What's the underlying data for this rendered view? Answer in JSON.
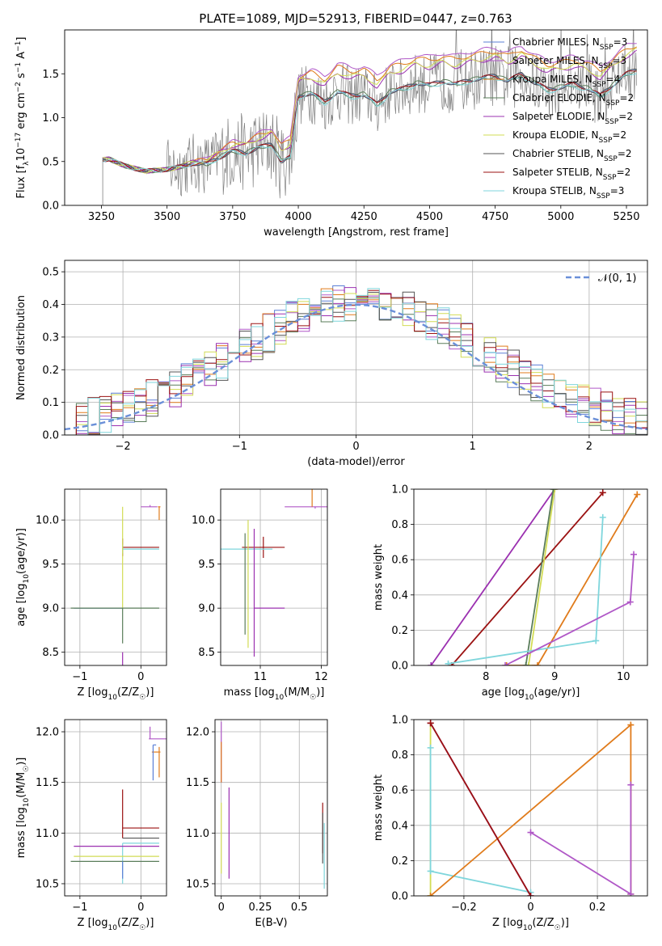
{
  "figure_title": "PLATE=1089, MJD=52913, FIBERID=0447, z=0.763",
  "series_colors": [
    "#5b7fd6",
    "#b058c7",
    "#e07b1b",
    "#5a7d5a",
    "#9b30b0",
    "#d2dc55",
    "#555555",
    "#9b1212",
    "#7fd6dc"
  ],
  "chart_data": [
    {
      "id": "spectrum",
      "type": "line",
      "xlabel": "wavelength [Angstrom, rest frame]",
      "ylabel": "Flux [f_λ 10^-17 erg cm^-2 s^-1 A^-1]",
      "xlim": [
        3110,
        5330
      ],
      "ylim": [
        0,
        2.0
      ],
      "xticks": [
        3250,
        3500,
        3750,
        4000,
        4250,
        4500,
        4750,
        5000,
        5250
      ],
      "yticks": [
        0.0,
        0.5,
        1.0,
        1.5
      ],
      "grid": false,
      "legend_position": "top-right",
      "series": [
        {
          "name": "Chabrier MILES, N_SSP=3"
        },
        {
          "name": "Salpeter MILES, N_SSP=3"
        },
        {
          "name": "Kroupa MILES, N_SSP=4"
        },
        {
          "name": "Chabrier ELODIE, N_SSP=2"
        },
        {
          "name": "Salpeter ELODIE, N_SSP=2"
        },
        {
          "name": "Kroupa ELODIE, N_SSP=2"
        },
        {
          "name": "Chabrier STELIB, N_SSP=2"
        },
        {
          "name": "Salpeter STELIB, N_SSP=2"
        },
        {
          "name": "Kroupa STELIB, N_SSP=3"
        }
      ],
      "model_curve_points": [
        [
          3255,
          0.52
        ],
        [
          3280,
          0.53
        ],
        [
          3300,
          0.5
        ],
        [
          3340,
          0.45
        ],
        [
          3380,
          0.42
        ],
        [
          3420,
          0.39
        ],
        [
          3460,
          0.4
        ],
        [
          3500,
          0.41
        ],
        [
          3550,
          0.44
        ],
        [
          3600,
          0.48
        ],
        [
          3650,
          0.47
        ],
        [
          3700,
          0.55
        ],
        [
          3750,
          0.62
        ],
        [
          3800,
          0.6
        ],
        [
          3850,
          0.66
        ],
        [
          3900,
          0.7
        ],
        [
          3935,
          0.5
        ],
        [
          3970,
          0.55
        ],
        [
          4000,
          1.25
        ],
        [
          4050,
          1.28
        ],
        [
          4100,
          1.18
        ],
        [
          4150,
          1.3
        ],
        [
          4200,
          1.25
        ],
        [
          4250,
          1.27
        ],
        [
          4300,
          1.15
        ],
        [
          4350,
          1.3
        ],
        [
          4400,
          1.33
        ],
        [
          4450,
          1.4
        ],
        [
          4500,
          1.37
        ],
        [
          4550,
          1.42
        ],
        [
          4600,
          1.38
        ],
        [
          4650,
          1.43
        ],
        [
          4700,
          1.45
        ],
        [
          4750,
          1.48
        ],
        [
          4800,
          1.42
        ],
        [
          4850,
          1.5
        ],
        [
          4900,
          1.4
        ],
        [
          4950,
          1.32
        ],
        [
          5000,
          1.35
        ],
        [
          5050,
          1.38
        ],
        [
          5100,
          1.34
        ],
        [
          5150,
          1.25
        ],
        [
          5200,
          1.38
        ],
        [
          5250,
          1.5
        ],
        [
          5290,
          1.55
        ]
      ],
      "model_offsets": [
        0.0,
        0.32,
        0.28,
        0.0,
        0.2,
        0.22,
        0.0,
        0.0,
        -0.02
      ]
    },
    {
      "id": "residual-histogram",
      "type": "bar",
      "xlabel": "(data-model)/error",
      "ylabel": "Normed distribution",
      "xlim": [
        -2.5,
        2.5
      ],
      "ylim": [
        0,
        0.535
      ],
      "xticks": [
        -2,
        -1,
        0,
        1,
        2
      ],
      "yticks": [
        0.0,
        0.1,
        0.2,
        0.3,
        0.4,
        0.5
      ],
      "grid": true,
      "legend_position": "top-right",
      "reference_curve": {
        "name": "𝒩(0, 1)",
        "mean": 0,
        "sigma": 1
      },
      "bin_width": 0.1
    },
    {
      "id": "age-vs-Z",
      "type": "scatter",
      "xlabel": "Z [log10(Z/Z☉)]",
      "ylabel": "age [log10(age/yr)]",
      "xlim": [
        -1.25,
        0.42
      ],
      "ylim": [
        8.35,
        10.35
      ],
      "xticks": [
        -1,
        0
      ],
      "yticks": [
        8.5,
        9.0,
        9.5,
        10.0
      ],
      "grid": true,
      "points": [
        {
          "c": 1,
          "x": 0.15,
          "y": 10.15,
          "xerr": [
            0.15,
            0.12
          ],
          "yerr": [
            0.0,
            0.02
          ]
        },
        {
          "c": 2,
          "x": 0.3,
          "y": 10.15,
          "xerr": [
            0.02,
            0.02
          ],
          "yerr": [
            0.15,
            0.0
          ]
        },
        {
          "c": 7,
          "x": -0.3,
          "y": 9.69,
          "xerr": [
            0.0,
            0.6
          ],
          "yerr": [
            0.1,
            0.1
          ]
        },
        {
          "c": 8,
          "x": -0.3,
          "y": 9.67,
          "xerr": [
            0.0,
            0.6
          ],
          "yerr": [
            0.05,
            0.05
          ]
        },
        {
          "c": 5,
          "x": -0.3,
          "y": 9.0,
          "xerr": [
            0.0,
            0.0
          ],
          "yerr": [
            0.0,
            1.15
          ]
        },
        {
          "c": 0,
          "x": -0.3,
          "y": 9.0,
          "xerr": [
            0.8,
            0.0
          ],
          "yerr": [
            0.0,
            0.0
          ]
        },
        {
          "c": 3,
          "x": -0.3,
          "y": 9.0,
          "xerr": [
            0.85,
            0.6
          ],
          "yerr": [
            0.4,
            0.0
          ]
        },
        {
          "c": 4,
          "x": -0.3,
          "y": 8.5,
          "xerr": [
            0.0,
            0.0
          ],
          "yerr": [
            0.15,
            0.0
          ]
        }
      ]
    },
    {
      "id": "age-vs-mass",
      "type": "scatter",
      "xlabel": "mass [log10(M/M☉)]",
      "ylabel": "",
      "xlim": [
        10.35,
        12.1
      ],
      "ylim": [
        8.35,
        10.35
      ],
      "xticks": [
        11,
        12
      ],
      "yticks": [
        8.5,
        9.0,
        9.5,
        10.0
      ],
      "grid": true,
      "points": [
        {
          "c": 1,
          "x": 11.9,
          "y": 10.15,
          "xerr": [
            0.5,
            0.2
          ],
          "yerr": [
            0.02,
            0.0
          ]
        },
        {
          "c": 2,
          "x": 11.85,
          "y": 10.15,
          "xerr": [
            0.0,
            0.0
          ],
          "yerr": [
            0.0,
            0.2
          ]
        },
        {
          "c": 7,
          "x": 11.05,
          "y": 9.69,
          "xerr": [
            0.35,
            0.35
          ],
          "yerr": [
            0.12,
            0.12
          ]
        },
        {
          "c": 8,
          "x": 10.9,
          "y": 9.67,
          "xerr": [
            0.6,
            0.3
          ],
          "yerr": [
            0.0,
            0.0
          ]
        },
        {
          "c": 4,
          "x": 10.9,
          "y": 9.0,
          "xerr": [
            0.0,
            0.5
          ],
          "yerr": [
            0.55,
            0.9
          ]
        },
        {
          "c": 5,
          "x": 10.8,
          "y": 9.0,
          "xerr": [
            0.0,
            0.0
          ],
          "yerr": [
            0.45,
            1.0
          ]
        },
        {
          "c": 3,
          "x": 10.75,
          "y": 9.0,
          "xerr": [
            0.0,
            0.0
          ],
          "yerr": [
            0.3,
            0.85
          ]
        }
      ]
    },
    {
      "id": "weight-vs-age",
      "type": "line",
      "xlabel": "age [log10(age/yr)]",
      "ylabel": "mass weight",
      "xlim": [
        6.95,
        10.35
      ],
      "ylim": [
        0,
        1.0
      ],
      "xticks": [
        8,
        9,
        10
      ],
      "yticks": [
        0.0,
        0.2,
        0.4,
        0.6,
        0.8,
        1.0
      ],
      "grid": true,
      "series": [
        {
          "c": 4,
          "points": [
            [
              7.2,
              0.0
            ],
            [
              9.0,
              1.0
            ]
          ]
        },
        {
          "c": 7,
          "points": [
            [
              7.5,
              0.0
            ],
            [
              9.7,
              0.98
            ]
          ]
        },
        {
          "c": 2,
          "points": [
            [
              8.3,
              0.0
            ],
            [
              8.75,
              0.0
            ],
            [
              10.2,
              0.97
            ]
          ]
        },
        {
          "c": 5,
          "points": [
            [
              8.62,
              0.0
            ],
            [
              9.0,
              1.0
            ]
          ]
        },
        {
          "c": 3,
          "points": [
            [
              8.58,
              0.0
            ],
            [
              8.98,
              1.0
            ]
          ]
        },
        {
          "c": 8,
          "points": [
            [
              7.45,
              0.01
            ],
            [
              9.6,
              0.14
            ],
            [
              9.7,
              0.84
            ]
          ]
        },
        {
          "c": 1,
          "points": [
            [
              8.28,
              0.0
            ],
            [
              10.1,
              0.36
            ],
            [
              10.15,
              0.63
            ]
          ]
        }
      ]
    },
    {
      "id": "mass-vs-Z",
      "type": "scatter",
      "xlabel": "Z [log10(Z/Z☉)]",
      "ylabel": "mass [log10(M/M☉)]",
      "xlim": [
        -1.25,
        0.42
      ],
      "ylim": [
        10.38,
        12.12
      ],
      "xticks": [
        -1,
        0
      ],
      "yticks": [
        10.5,
        11.0,
        11.5,
        12.0
      ],
      "grid": true,
      "points": [
        {
          "c": 1,
          "x": 0.15,
          "y": 11.93,
          "xerr": [
            0.02,
            0.35
          ],
          "yerr": [
            0.0,
            0.12
          ]
        },
        {
          "c": 2,
          "x": 0.3,
          "y": 11.8,
          "xerr": [
            0.12,
            0.02
          ],
          "yerr": [
            0.25,
            0.05
          ]
        },
        {
          "c": 0,
          "x": 0.2,
          "y": 11.87,
          "xerr": [
            0.0,
            0.05
          ],
          "yerr": [
            0.35,
            0.0
          ]
        },
        {
          "c": 7,
          "x": -0.3,
          "y": 11.05,
          "xerr": [
            0.0,
            0.6
          ],
          "yerr": [
            0.1,
            0.38
          ]
        },
        {
          "c": 6,
          "x": -0.3,
          "y": 10.95,
          "xerr": [
            0.0,
            0.6
          ],
          "yerr": [
            0.0,
            0.0
          ]
        },
        {
          "c": 8,
          "x": -0.3,
          "y": 10.9,
          "xerr": [
            0.0,
            0.6
          ],
          "yerr": [
            0.4,
            0.0
          ]
        },
        {
          "c": 4,
          "x": -0.3,
          "y": 10.87,
          "xerr": [
            0.8,
            0.6
          ],
          "yerr": [
            0.0,
            0.0
          ]
        },
        {
          "c": 5,
          "x": -0.3,
          "y": 10.77,
          "xerr": [
            0.8,
            0.6
          ],
          "yerr": [
            0.0,
            0.0
          ]
        },
        {
          "c": 3,
          "x": -0.3,
          "y": 10.72,
          "xerr": [
            0.85,
            0.6
          ],
          "yerr": [
            0.0,
            0.0
          ]
        },
        {
          "c": 0,
          "x": -0.3,
          "y": 10.72,
          "xerr": [
            0.0,
            0.0
          ],
          "yerr": [
            0.17,
            0.0
          ]
        }
      ]
    },
    {
      "id": "mass-vs-ebv",
      "type": "scatter",
      "xlabel": "E(B-V)",
      "ylabel": "",
      "xlim": [
        -0.04,
        0.68
      ],
      "ylim": [
        10.38,
        12.12
      ],
      "xticks": [
        0.0,
        0.25,
        0.5
      ],
      "yticks": [
        10.5,
        11.0,
        11.5,
        12.0
      ],
      "grid": true,
      "points": [
        {
          "c": 1,
          "x": 0.0,
          "y": 11.9,
          "xerr": [
            0.0,
            0.0
          ],
          "yerr": [
            0.4,
            0.2
          ]
        },
        {
          "c": 2,
          "x": 0.0,
          "y": 11.8,
          "xerr": [
            0.0,
            0.0
          ],
          "yerr": [
            0.3,
            0.1
          ]
        },
        {
          "c": 5,
          "x": 0.0,
          "y": 10.9,
          "xerr": [
            0.0,
            0.0
          ],
          "yerr": [
            0.3,
            0.4
          ]
        },
        {
          "c": 4,
          "x": 0.05,
          "y": 11.0,
          "xerr": [
            0.0,
            0.0
          ],
          "yerr": [
            0.45,
            0.45
          ]
        },
        {
          "c": 7,
          "x": 0.65,
          "y": 11.1,
          "xerr": [
            0.0,
            0.0
          ],
          "yerr": [
            0.3,
            0.2
          ]
        },
        {
          "c": 6,
          "x": 0.65,
          "y": 11.0,
          "xerr": [
            0.0,
            0.0
          ],
          "yerr": [
            0.3,
            0.2
          ]
        },
        {
          "c": 8,
          "x": 0.66,
          "y": 10.9,
          "xerr": [
            0.0,
            0.0
          ],
          "yerr": [
            0.45,
            0.2
          ]
        }
      ]
    },
    {
      "id": "weight-vs-Z",
      "type": "line",
      "xlabel": "Z [log10(Z/Z☉)]",
      "ylabel": "mass weight",
      "xlim": [
        -0.35,
        0.35
      ],
      "ylim": [
        0,
        1.0
      ],
      "xticks": [
        -0.2,
        0.0,
        0.2
      ],
      "yticks": [
        0.0,
        0.2,
        0.4,
        0.6,
        0.8,
        1.0
      ],
      "grid": true,
      "series": [
        {
          "c": 5,
          "points": [
            [
              -0.3,
              0.0
            ],
            [
              -0.3,
              0.98
            ]
          ]
        },
        {
          "c": 8,
          "points": [
            [
              -0.3,
              0.84
            ],
            [
              -0.3,
              0.14
            ],
            [
              0.0,
              0.02
            ]
          ]
        },
        {
          "c": 2,
          "points": [
            [
              -0.3,
              0.0
            ],
            [
              0.3,
              0.97
            ],
            [
              0.3,
              0.01
            ]
          ]
        },
        {
          "c": 1,
          "points": [
            [
              0.0,
              0.36
            ],
            [
              0.3,
              0.01
            ],
            [
              0.3,
              0.63
            ]
          ]
        },
        {
          "c": 4,
          "points": [
            [
              -0.3,
              0.98
            ],
            [
              0.0,
              0.0
            ]
          ]
        },
        {
          "c": 7,
          "points": [
            [
              -0.3,
              0.98
            ],
            [
              0.0,
              0.0
            ]
          ]
        }
      ]
    }
  ]
}
